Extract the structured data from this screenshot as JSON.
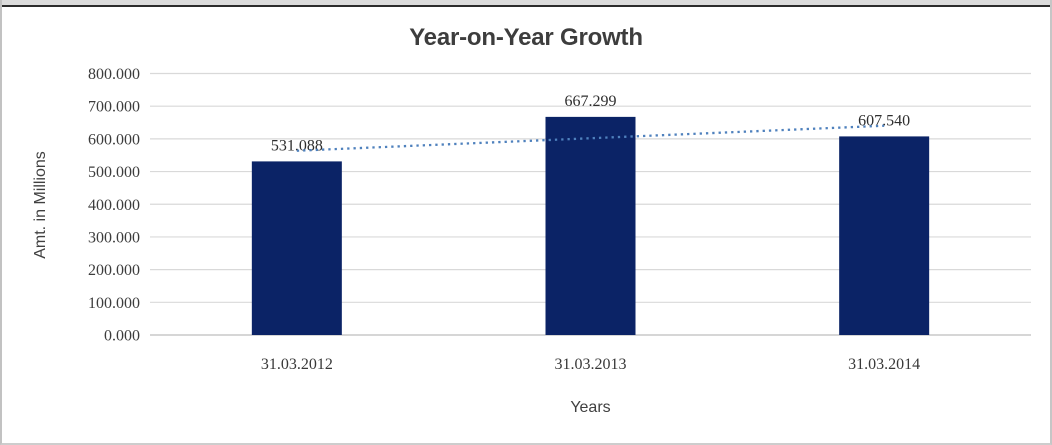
{
  "chart_data": {
    "type": "bar",
    "title": "Year-on-Year Growth",
    "categories": [
      "31.03.2012",
      "31.03.2013",
      "31.03.2014"
    ],
    "values": [
      531.088,
      667.299,
      607.54
    ],
    "data_labels": [
      "531.088",
      "667.299",
      "607.540"
    ],
    "xlabel": "Years",
    "ylabel": "Amt. in Millions",
    "ylim": [
      0,
      800
    ],
    "y_tick_step": 100,
    "y_tick_labels": [
      "0.000",
      "100.000",
      "200.000",
      "300.000",
      "400.000",
      "500.000",
      "600.000",
      "700.000",
      "800.000"
    ],
    "grid": true,
    "legend": "none",
    "trendline": {
      "type": "linear",
      "style": "dotted",
      "color": "#4f81bd"
    },
    "colors": {
      "bar": "#0b2366",
      "gridline": "#d9d9d9",
      "axis_line": "#c9c9c9",
      "title_text": "#3d3d3d",
      "axis_title_text": "#404040",
      "tick_text": "#3c3c3c",
      "data_label_text": "#2e2e2e",
      "trendline": "#4f81bd",
      "frame_border": "#c6c6c6",
      "top_edge_line": "#2c2c2c"
    }
  }
}
